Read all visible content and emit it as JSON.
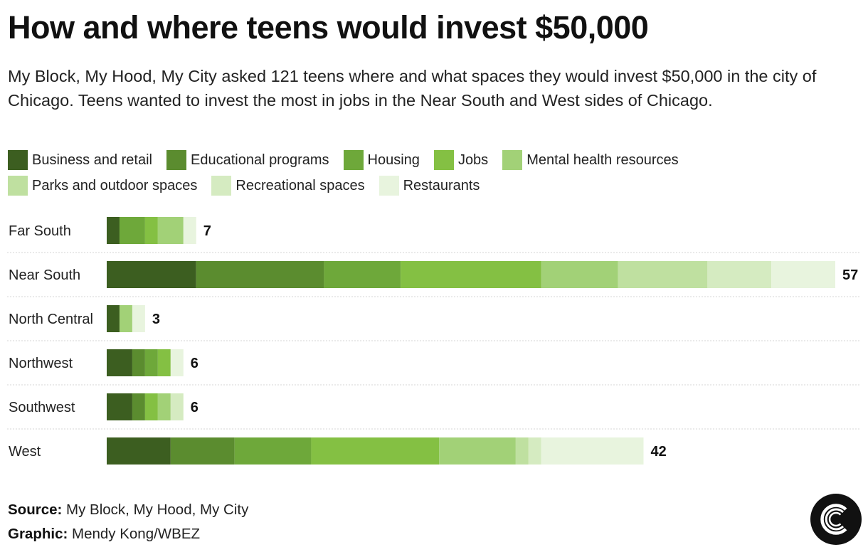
{
  "title": "How and where teens would invest $50,000",
  "subtitle": "My Block, My Hood, My City asked 121 teens where and what spaces they would invest $50,000 in the city of Chicago. Teens wanted to invest the most in jobs in the Near South and West sides of Chicago.",
  "legend": [
    {
      "label": "Business and retail",
      "color": "#3c5e20"
    },
    {
      "label": "Educational programs",
      "color": "#5b8c2f"
    },
    {
      "label": "Housing",
      "color": "#6ea83a"
    },
    {
      "label": "Jobs",
      "color": "#84c043"
    },
    {
      "label": "Mental health resources",
      "color": "#a2d177"
    },
    {
      "label": "Parks and outdoor spaces",
      "color": "#bfe0a0"
    },
    {
      "label": "Recreational spaces",
      "color": "#d5ebc1"
    },
    {
      "label": "Restaurants",
      "color": "#e8f4de"
    }
  ],
  "chart_data": {
    "type": "bar",
    "orientation": "horizontal",
    "stacked": true,
    "categories": [
      "Far South",
      "Near South",
      "North Central",
      "Northwest",
      "Southwest",
      "West"
    ],
    "series": [
      {
        "name": "Business and retail",
        "color": "#3c5e20",
        "values": [
          1,
          7,
          1,
          2,
          2,
          5
        ]
      },
      {
        "name": "Educational programs",
        "color": "#5b8c2f",
        "values": [
          0,
          10,
          0,
          1,
          1,
          5
        ]
      },
      {
        "name": "Housing",
        "color": "#6ea83a",
        "values": [
          2,
          6,
          0,
          1,
          0,
          6
        ]
      },
      {
        "name": "Jobs",
        "color": "#84c043",
        "values": [
          1,
          11,
          0,
          1,
          1,
          10
        ]
      },
      {
        "name": "Mental health resources",
        "color": "#a2d177",
        "values": [
          2,
          6,
          1,
          0,
          1,
          6
        ]
      },
      {
        "name": "Parks and outdoor spaces",
        "color": "#bfe0a0",
        "values": [
          0,
          7,
          0,
          0,
          0,
          1
        ]
      },
      {
        "name": "Recreational spaces",
        "color": "#d5ebc1",
        "values": [
          0,
          5,
          0,
          0,
          1,
          1
        ]
      },
      {
        "name": "Restaurants",
        "color": "#e8f4de",
        "values": [
          1,
          5,
          1,
          1,
          0,
          8
        ]
      }
    ],
    "totals": [
      7,
      57,
      3,
      6,
      6,
      42
    ],
    "xlim": [
      0,
      57
    ],
    "grid": false,
    "legend_position": "top"
  },
  "footer": {
    "source_label": "Source:",
    "source_text": "My Block, My Hood, My City",
    "graphic_label": "Graphic:",
    "graphic_text": "Mendy Kong/WBEZ"
  },
  "logo_icon": "chicago-sun-times-c-logo-icon"
}
